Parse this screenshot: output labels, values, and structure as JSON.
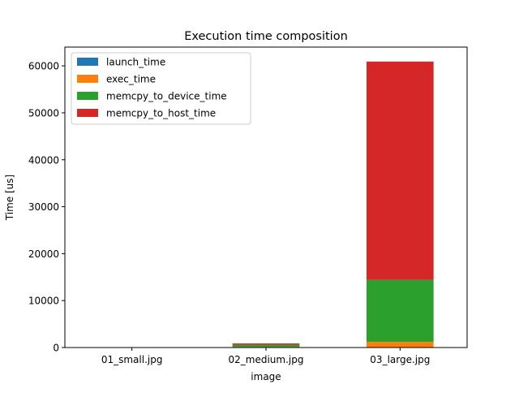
{
  "chart_data": {
    "type": "bar",
    "stacked": true,
    "title": "Execution time composition",
    "xlabel": "image",
    "ylabel": "Time [us]",
    "categories": [
      "01_small.jpg",
      "02_medium.jpg",
      "03_large.jpg"
    ],
    "ylim": [
      0,
      64000
    ],
    "yticks": [
      0,
      10000,
      20000,
      30000,
      40000,
      50000,
      60000
    ],
    "grid": false,
    "legend_position": "top-left",
    "series": [
      {
        "name": "launch_time",
        "color": "#1f77b4",
        "values": [
          5,
          8,
          20
        ]
      },
      {
        "name": "exec_time",
        "color": "#ff7f0e",
        "values": [
          20,
          120,
          1200
        ]
      },
      {
        "name": "memcpy_to_device_time",
        "color": "#2ca02c",
        "values": [
          30,
          450,
          13200
        ]
      },
      {
        "name": "memcpy_to_host_time",
        "color": "#d62728",
        "values": [
          25,
          300,
          46500
        ]
      }
    ]
  }
}
